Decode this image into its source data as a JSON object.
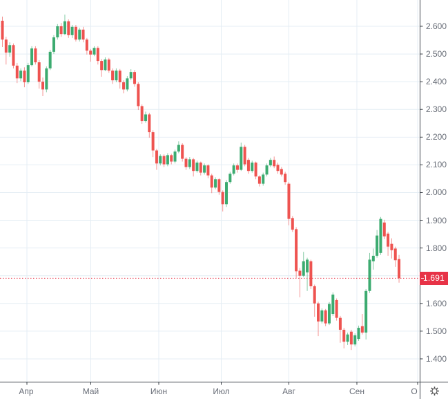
{
  "chart_data": {
    "type": "candlestick",
    "title": "",
    "x": {
      "tick_labels": [
        "Апр",
        "Май",
        "Июн",
        "Июл",
        "Авг",
        "Сен",
        "О"
      ]
    },
    "y": {
      "tick_labels": [
        "2.600",
        "2.500",
        "2.400",
        "2.300",
        "2.200",
        "2.100",
        "2.000",
        "1.900",
        "1.800",
        "1.700",
        "1.600",
        "1.500",
        "1.400"
      ],
      "visible_range": [
        1.32,
        2.69
      ],
      "grid": true,
      "position": "right"
    },
    "current_price": {
      "label": "1.691",
      "value": 1.691
    },
    "legend_position": "none",
    "series": [
      {
        "name": "price",
        "ohlc_format": [
          "open",
          "high",
          "low",
          "close"
        ],
        "candles": [
          [
            2.62,
            2.635,
            2.525,
            2.552
          ],
          [
            2.552,
            2.562,
            2.462,
            2.505
          ],
          [
            2.505,
            2.542,
            2.49,
            2.532
          ],
          [
            2.532,
            2.538,
            2.448,
            2.458
          ],
          [
            2.458,
            2.468,
            2.395,
            2.412
          ],
          [
            2.412,
            2.448,
            2.402,
            2.44
          ],
          [
            2.44,
            2.452,
            2.38,
            2.398
          ],
          [
            2.398,
            2.468,
            2.392,
            2.46
          ],
          [
            2.46,
            2.528,
            2.455,
            2.52
          ],
          [
            2.52,
            2.528,
            2.462,
            2.47
          ],
          [
            2.47,
            2.478,
            2.375,
            2.4
          ],
          [
            2.4,
            2.415,
            2.348,
            2.372
          ],
          [
            2.372,
            2.455,
            2.362,
            2.448
          ],
          [
            2.448,
            2.515,
            2.442,
            2.508
          ],
          [
            2.508,
            2.568,
            2.5,
            2.56
          ],
          [
            2.56,
            2.608,
            2.552,
            2.6
          ],
          [
            2.6,
            2.612,
            2.562,
            2.572
          ],
          [
            2.572,
            2.642,
            2.568,
            2.618
          ],
          [
            2.618,
            2.625,
            2.558,
            2.568
          ],
          [
            2.568,
            2.605,
            2.558,
            2.598
          ],
          [
            2.598,
            2.605,
            2.545,
            2.552
          ],
          [
            2.552,
            2.595,
            2.545,
            2.588
          ],
          [
            2.588,
            2.598,
            2.542,
            2.552
          ],
          [
            2.552,
            2.558,
            2.498,
            2.512
          ],
          [
            2.512,
            2.518,
            2.472,
            2.498
          ],
          [
            2.498,
            2.528,
            2.492,
            2.522
          ],
          [
            2.522,
            2.528,
            2.462,
            2.475
          ],
          [
            2.475,
            2.482,
            2.418,
            2.442
          ],
          [
            2.442,
            2.488,
            2.438,
            2.48
          ],
          [
            2.48,
            2.486,
            2.432,
            2.44
          ],
          [
            2.44,
            2.448,
            2.392,
            2.405
          ],
          [
            2.405,
            2.448,
            2.398,
            2.44
          ],
          [
            2.44,
            2.446,
            2.375,
            2.398
          ],
          [
            2.398,
            2.405,
            2.358,
            2.372
          ],
          [
            2.372,
            2.42,
            2.365,
            2.412
          ],
          [
            2.412,
            2.445,
            2.405,
            2.435
          ],
          [
            2.435,
            2.442,
            2.382,
            2.392
          ],
          [
            2.392,
            2.398,
            2.298,
            2.312
          ],
          [
            2.312,
            2.318,
            2.248,
            2.258
          ],
          [
            2.258,
            2.292,
            2.252,
            2.282
          ],
          [
            2.282,
            2.288,
            2.198,
            2.218
          ],
          [
            2.218,
            2.225,
            2.128,
            2.152
          ],
          [
            2.152,
            2.158,
            2.082,
            2.105
          ],
          [
            2.105,
            2.138,
            2.098,
            2.132
          ],
          [
            2.132,
            2.138,
            2.092,
            2.102
          ],
          [
            2.102,
            2.142,
            2.095,
            2.135
          ],
          [
            2.135,
            2.14,
            2.102,
            2.112
          ],
          [
            2.112,
            2.155,
            2.105,
            2.148
          ],
          [
            2.148,
            2.185,
            2.142,
            2.172
          ],
          [
            2.172,
            2.178,
            2.112,
            2.122
          ],
          [
            2.122,
            2.128,
            2.082,
            2.092
          ],
          [
            2.092,
            2.128,
            2.085,
            2.12
          ],
          [
            2.12,
            2.125,
            2.058,
            2.078
          ],
          [
            2.078,
            2.115,
            2.072,
            2.108
          ],
          [
            2.108,
            2.112,
            2.062,
            2.072
          ],
          [
            2.072,
            2.105,
            2.065,
            2.098
          ],
          [
            2.098,
            2.102,
            2.052,
            2.062
          ],
          [
            2.062,
            2.068,
            1.998,
            2.018
          ],
          [
            2.018,
            2.055,
            2.012,
            2.048
          ],
          [
            2.048,
            2.052,
            1.992,
            2.002
          ],
          [
            2.002,
            2.008,
            1.932,
            1.958
          ],
          [
            1.958,
            2.045,
            1.948,
            2.038
          ],
          [
            2.038,
            2.075,
            2.032,
            2.068
          ],
          [
            2.068,
            2.105,
            2.062,
            2.098
          ],
          [
            2.098,
            2.105,
            2.072,
            2.082
          ],
          [
            2.082,
            2.18,
            2.078,
            2.165
          ],
          [
            2.165,
            2.172,
            2.095,
            2.102
          ],
          [
            2.118,
            2.125,
            2.068,
            2.078
          ],
          [
            2.078,
            2.115,
            2.072,
            2.108
          ],
          [
            2.108,
            2.112,
            2.048,
            2.058
          ],
          [
            2.058,
            2.062,
            2.022,
            2.032
          ],
          [
            2.032,
            2.072,
            2.025,
            2.065
          ],
          [
            2.065,
            2.105,
            2.058,
            2.098
          ],
          [
            2.098,
            2.125,
            2.092,
            2.118
          ],
          [
            2.118,
            2.13,
            2.088,
            2.095
          ],
          [
            2.1,
            2.108,
            2.068,
            2.078
          ],
          [
            2.085,
            2.092,
            2.058,
            2.065
          ],
          [
            2.068,
            2.075,
            2.028,
            2.038
          ],
          [
            2.032,
            2.038,
            1.882,
            1.905
          ],
          [
            1.908,
            1.915,
            1.858,
            1.866
          ],
          [
            1.868,
            1.875,
            1.692,
            1.716
          ],
          [
            1.718,
            1.728,
            1.622,
            1.7
          ],
          [
            1.7,
            1.786,
            1.695,
            1.752
          ],
          [
            1.712,
            1.765,
            1.645,
            1.758
          ],
          [
            1.752,
            1.758,
            1.652,
            1.662
          ],
          [
            1.662,
            1.668,
            1.552,
            1.6
          ],
          [
            1.6,
            1.606,
            1.482,
            1.535
          ],
          [
            1.535,
            1.582,
            1.528,
            1.575
          ],
          [
            1.575,
            1.58,
            1.518,
            1.528
          ],
          [
            1.528,
            1.605,
            1.522,
            1.598
          ],
          [
            1.562,
            1.64,
            1.555,
            1.632
          ],
          [
            1.612,
            1.618,
            1.538,
            1.548
          ],
          [
            1.548,
            1.555,
            1.458,
            1.505
          ],
          [
            1.505,
            1.512,
            1.438,
            1.462
          ],
          [
            1.462,
            1.495,
            1.45,
            1.488
          ],
          [
            1.498,
            1.505,
            1.432,
            1.452
          ],
          [
            1.452,
            1.492,
            1.445,
            1.485
          ],
          [
            1.472,
            1.52,
            1.465,
            1.512
          ],
          [
            1.518,
            1.562,
            1.488,
            1.495
          ],
          [
            1.495,
            1.652,
            1.47,
            1.645
          ],
          [
            1.645,
            1.782,
            1.638,
            1.758
          ],
          [
            1.752,
            1.798,
            1.722,
            1.772
          ],
          [
            1.772,
            1.865,
            1.765,
            1.845
          ],
          [
            1.782,
            1.912,
            1.775,
            1.905
          ],
          [
            1.892,
            1.902,
            1.832,
            1.842
          ],
          [
            1.852,
            1.858,
            1.772,
            1.805
          ],
          [
            1.815,
            1.835,
            1.762,
            1.792
          ],
          [
            1.798,
            1.805,
            1.732,
            1.756
          ],
          [
            1.76,
            1.775,
            1.675,
            1.691
          ]
        ]
      }
    ],
    "colors": {
      "up": "#3cab70",
      "down": "#ee5350",
      "grid": "#e4edf4",
      "axis": "#3a4047",
      "tick_text": "#686d77",
      "price_line": "#e73347",
      "price_label_bg": "#e73347",
      "price_label_text": "#ffffff",
      "background": "#ffffff"
    }
  },
  "icons": {
    "settings": "gear"
  }
}
